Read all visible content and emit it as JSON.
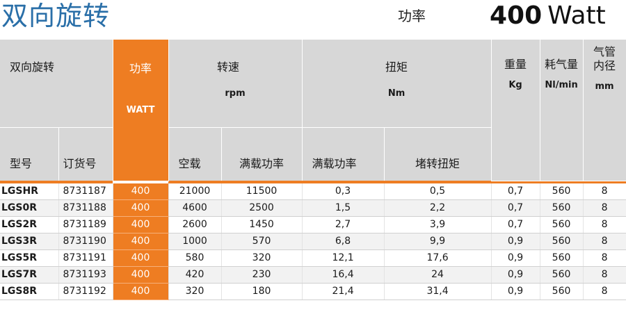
{
  "title": "双向旋转",
  "power": {
    "label": "功率",
    "value": "400",
    "unit": "Watt"
  },
  "header": {
    "group_label": "双向旋转",
    "power": "功率",
    "power_unit": "WATT",
    "speed": "转速",
    "speed_unit": "rpm",
    "torque": "扭矩",
    "torque_unit": "Nm",
    "weight": "重量",
    "weight_unit": "Kg",
    "air": "耗气量",
    "air_unit": "Nl/min",
    "hose_line1": "气管",
    "hose_line2": "内径",
    "hose_unit": "mm",
    "model": "型号",
    "order_no": "订货号",
    "speed_idle": "空载",
    "speed_full": "满载功率",
    "torque_full": "满载功率",
    "torque_stall": "堵转扭矩"
  },
  "rows": [
    {
      "model": "LGSHR",
      "order": "8731187",
      "power": "400",
      "idle": "21000",
      "full": "11500",
      "torque_full": "0,3",
      "stall": "0,5",
      "weight": "0,7",
      "air": "560",
      "hose": "8"
    },
    {
      "model": "LGS0R",
      "order": "8731188",
      "power": "400",
      "idle": "4600",
      "full": "2500",
      "torque_full": "1,5",
      "stall": "2,2",
      "weight": "0,7",
      "air": "560",
      "hose": "8"
    },
    {
      "model": "LGS2R",
      "order": "8731189",
      "power": "400",
      "idle": "2600",
      "full": "1450",
      "torque_full": "2,7",
      "stall": "3,9",
      "weight": "0,7",
      "air": "560",
      "hose": "8"
    },
    {
      "model": "LGS3R",
      "order": "8731190",
      "power": "400",
      "idle": "1000",
      "full": "570",
      "torque_full": "6,8",
      "stall": "9,9",
      "weight": "0,9",
      "air": "560",
      "hose": "8"
    },
    {
      "model": "LGS5R",
      "order": "8731191",
      "power": "400",
      "idle": "580",
      "full": "320",
      "torque_full": "12,1",
      "stall": "17,6",
      "weight": "0,9",
      "air": "560",
      "hose": "8"
    },
    {
      "model": "LGS7R",
      "order": "8731193",
      "power": "400",
      "idle": "420",
      "full": "230",
      "torque_full": "16,4",
      "stall": "24",
      "weight": "0,9",
      "air": "560",
      "hose": "8"
    },
    {
      "model": "LGS8R",
      "order": "8731192",
      "power": "400",
      "idle": "320",
      "full": "180",
      "torque_full": "21,4",
      "stall": "31,4",
      "weight": "0,9",
      "air": "560",
      "hose": "8"
    }
  ]
}
